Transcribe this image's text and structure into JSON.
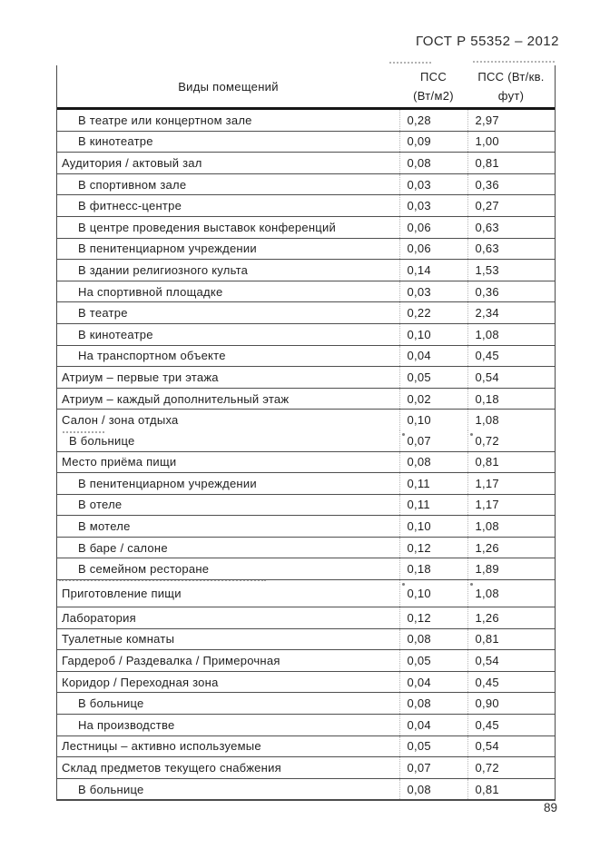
{
  "page": {
    "header_title": "ГОСТ Р 55352 – 2012",
    "page_number": "89"
  },
  "table": {
    "header": {
      "col1": "Виды помещений",
      "col2_line1": "ПСС",
      "col2_line2": "(Вт/м2)",
      "col3_line1": "ПСС (Вт/кв.",
      "col3_line2": "фут)"
    },
    "rows": [
      {
        "label": "В театре или концертном зале",
        "indent": 1,
        "w_m2": "0,28",
        "w_ft2": "2,97"
      },
      {
        "label": "В кинотеатре",
        "indent": 1,
        "w_m2": "0,09",
        "w_ft2": "1,00"
      },
      {
        "label": "Аудитория / актовый зал",
        "indent": 0,
        "w_m2": "0,08",
        "w_ft2": "0,81"
      },
      {
        "label": "В спортивном зале",
        "indent": 1,
        "w_m2": "0,03",
        "w_ft2": "0,36"
      },
      {
        "label": "В фитнесс-центре",
        "indent": 1,
        "w_m2": "0,03",
        "w_ft2": "0,27"
      },
      {
        "label": "В центре проведения выставок конференций",
        "indent": 1,
        "w_m2": "0,06",
        "w_ft2": "0,63"
      },
      {
        "label": "В пенитенциарном учреждении",
        "indent": 1,
        "w_m2": "0,06",
        "w_ft2": "0,63"
      },
      {
        "label": "В здании религиозного культа",
        "indent": 1,
        "w_m2": "0,14",
        "w_ft2": "1,53"
      },
      {
        "label": "На спортивной площадке",
        "indent": 1,
        "w_m2": "0,03",
        "w_ft2": "0,36"
      },
      {
        "label": "В театре",
        "indent": 1,
        "w_m2": "0,22",
        "w_ft2": "2,34"
      },
      {
        "label": "В кинотеатре",
        "indent": 1,
        "w_m2": "0,10",
        "w_ft2": "1,08"
      },
      {
        "label": "На транспортном объекте",
        "indent": 1,
        "w_m2": "0,04",
        "w_ft2": "0,45"
      },
      {
        "label": "Атриум – первые три этажа",
        "indent": 0,
        "w_m2": "0,05",
        "w_ft2": "0,54"
      },
      {
        "label": "Атриум – каждый дополнительный этаж",
        "indent": 0,
        "w_m2": "0,02",
        "w_ft2": "0,18"
      },
      {
        "label": "Салон / зона отдыха",
        "indent": 0,
        "w_m2": "0,10",
        "w_ft2": "1,08",
        "no_bottom_border": true
      },
      {
        "label": "В больнице",
        "indent": 2,
        "w_m2": "0,07",
        "w_ft2": "0,72",
        "dot_marks": true,
        "smudge": "short"
      },
      {
        "label": "Место приёма пищи",
        "indent": 0,
        "w_m2": "0,08",
        "w_ft2": "0,81"
      },
      {
        "label": "В пенитенциарном учреждении",
        "indent": 1,
        "w_m2": "0,11",
        "w_ft2": "1,17"
      },
      {
        "label": "В отеле",
        "indent": 1,
        "w_m2": "0,11",
        "w_ft2": "1,17"
      },
      {
        "label": "В мотеле",
        "indent": 1,
        "w_m2": "0,10",
        "w_ft2": "1,08"
      },
      {
        "label": "В баре / салоне",
        "indent": 1,
        "w_m2": "0,12",
        "w_ft2": "1,26"
      },
      {
        "label": "В семейном ресторане",
        "indent": 1,
        "w_m2": "0,18",
        "w_ft2": "1,89"
      },
      {
        "label": "Приготовление пищи",
        "indent": 0,
        "w_m2": "0,10",
        "w_ft2": "1,08",
        "dot_marks": true,
        "smudge": "long",
        "tall": true
      },
      {
        "label": "Лаборатория",
        "indent": 0,
        "w_m2": "0,12",
        "w_ft2": "1,26"
      },
      {
        "label": "Туалетные комнаты",
        "indent": 0,
        "w_m2": "0,08",
        "w_ft2": "0,81"
      },
      {
        "label": "Гардероб / Раздевалка / Примерочная",
        "indent": 0,
        "w_m2": "0,05",
        "w_ft2": "0,54"
      },
      {
        "label": "Коридор / Переходная зона",
        "indent": 0,
        "w_m2": "0,04",
        "w_ft2": "0,45"
      },
      {
        "label": "В больнице",
        "indent": 1,
        "w_m2": "0,08",
        "w_ft2": "0,90"
      },
      {
        "label": "На производстве",
        "indent": 1,
        "w_m2": "0,04",
        "w_ft2": "0,45"
      },
      {
        "label": "Лестницы – активно используемые",
        "indent": 0,
        "w_m2": "0,05",
        "w_ft2": "0,54"
      },
      {
        "label": "Склад предметов текущего снабжения",
        "indent": 0,
        "w_m2": "0,07",
        "w_ft2": "0,72"
      },
      {
        "label": "В больнице",
        "indent": 1,
        "w_m2": "0,08",
        "w_ft2": "0,81"
      }
    ]
  }
}
